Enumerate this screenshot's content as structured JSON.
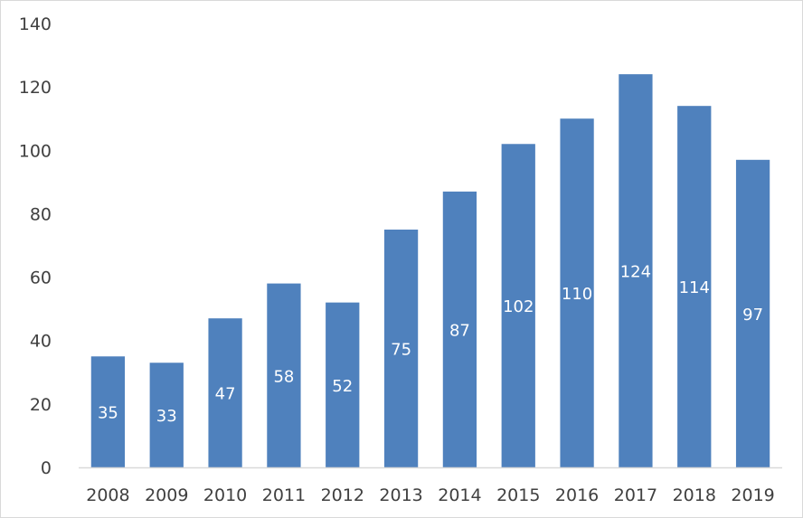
{
  "chart_data": {
    "type": "bar",
    "title": "",
    "xlabel": "",
    "ylabel": "",
    "categories": [
      "2008",
      "2009",
      "2010",
      "2011",
      "2012",
      "2013",
      "2014",
      "2015",
      "2016",
      "2017",
      "2018",
      "2019"
    ],
    "values": [
      35,
      33,
      47,
      58,
      52,
      75,
      87,
      102,
      110,
      124,
      114,
      97
    ],
    "data_labels": [
      "35",
      "33",
      "47",
      "58",
      "52",
      "75",
      "87",
      "102",
      "110",
      "124",
      "114",
      "97"
    ],
    "ylim": [
      0,
      140
    ],
    "y_ticks": [
      0,
      20,
      40,
      60,
      80,
      100,
      120,
      140
    ],
    "y_tick_labels": [
      "0",
      "20",
      "40",
      "60",
      "80",
      "100",
      "120",
      "140"
    ],
    "grid": false,
    "legend": "none",
    "bar_color": "#4F81BD",
    "data_label_color": "#FFFFFF",
    "axis_color": "#D9D9D9",
    "tick_label_color": "#404040"
  }
}
